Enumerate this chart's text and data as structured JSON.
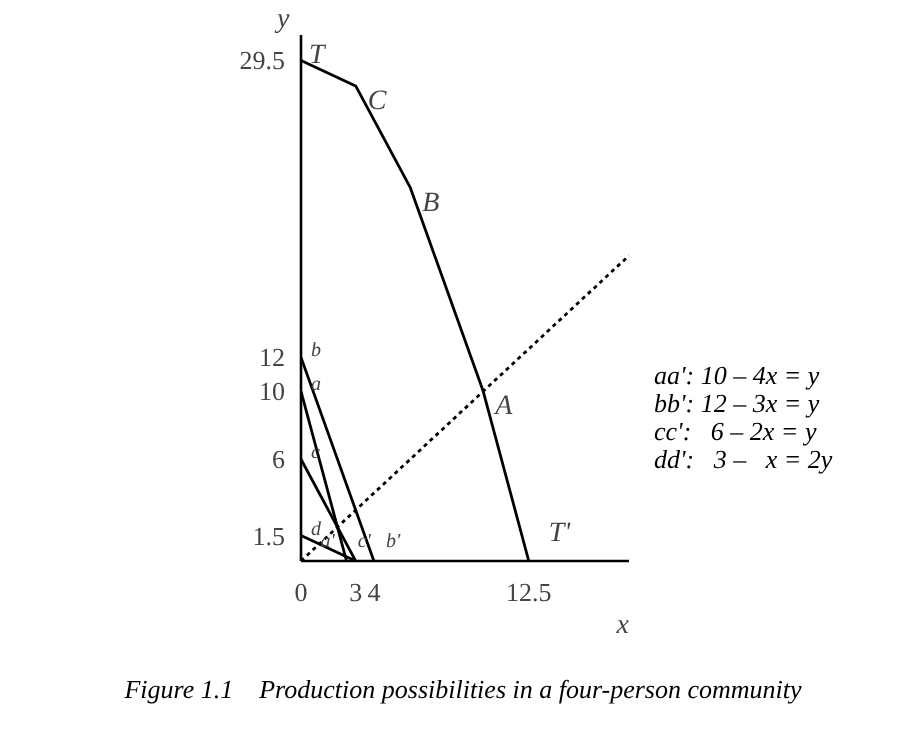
{
  "chart_data": {
    "type": "line",
    "title": "Figure 1.1    Production possibilities in a four-person community",
    "xlabel": "x",
    "ylabel": "y",
    "series": [
      {
        "x": [
          0,
          3,
          6,
          10,
          12.5
        ],
        "values": [
          29.5,
          28,
          22,
          10,
          0
        ],
        "color": "#000000"
      },
      {
        "x": [
          0,
          2.5
        ],
        "values": [
          10,
          0
        ],
        "color": "#000000"
      },
      {
        "x": [
          0,
          4
        ],
        "values": [
          12,
          0
        ],
        "color": "#000000"
      },
      {
        "x": [
          0,
          3
        ],
        "values": [
          6,
          0
        ],
        "color": "#000000"
      },
      {
        "x": [
          0,
          3
        ],
        "values": [
          1.5,
          0
        ],
        "color": "#000000"
      },
      {
        "x": [
          0,
          18
        ],
        "values": [
          0,
          18
        ],
        "color": "#000000",
        "line_style": "dotted"
      }
    ],
    "xlim": [
      0,
      18
    ],
    "ylim": [
      0,
      31
    ],
    "xticks": [
      0,
      3,
      4,
      12.5
    ],
    "yticks": [
      1.5,
      6,
      10,
      12,
      29.5
    ],
    "grid": false,
    "marker": "none",
    "line_style": "solid",
    "annotations": [
      {
        "text": "T",
        "x": 0,
        "y": 29.5
      },
      {
        "text": "C",
        "x": 3,
        "y": 28
      },
      {
        "text": "B",
        "x": 6,
        "y": 22
      },
      {
        "text": "A",
        "x": 10,
        "y": 10
      },
      {
        "text": "T'",
        "x": 12.5,
        "y": 0
      },
      {
        "text": "b",
        "x": 0,
        "y": 12
      },
      {
        "text": "a",
        "x": 0,
        "y": 10
      },
      {
        "text": "c",
        "x": 0,
        "y": 6
      },
      {
        "text": "d",
        "x": 0,
        "y": 1.5
      },
      {
        "text": "a'",
        "x": 2.5,
        "y": 0
      },
      {
        "text": "c'",
        "x": 3,
        "y": 0
      },
      {
        "text": "b'",
        "x": 4,
        "y": 0
      },
      "aa': 10 – 4x = y",
      "bb': 12 – 3x = y",
      "cc':   6 – 2x = y",
      "dd':   3 –   x = 2y"
    ]
  }
}
